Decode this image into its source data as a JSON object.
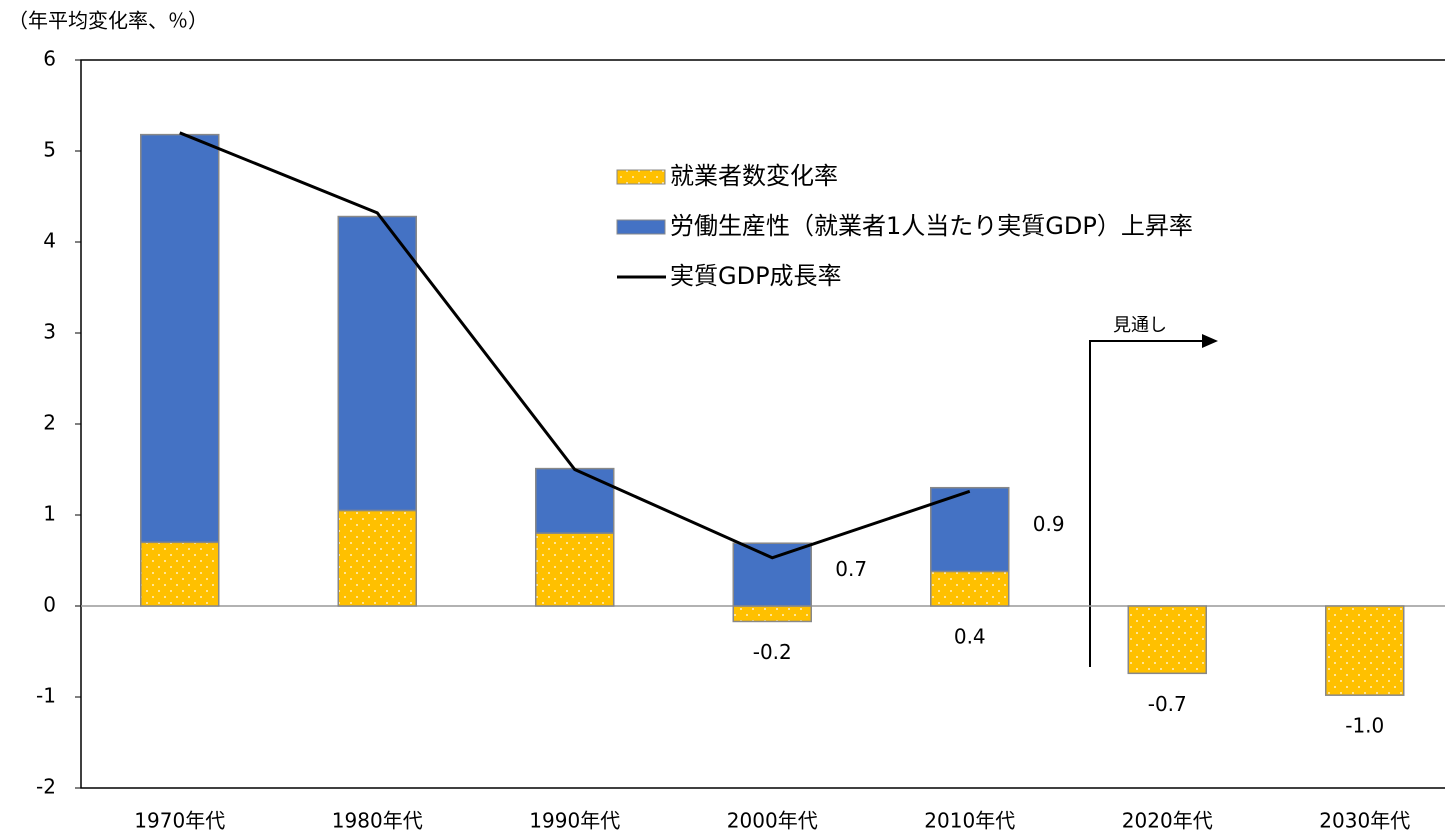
{
  "chart_data": {
    "type": "bar",
    "stacked": true,
    "ylabel": "（年平均変化率、％）",
    "categories": [
      "1970年代",
      "1980年代",
      "1990年代",
      "2000年代",
      "2010年代",
      "2020年代",
      "2030年代"
    ],
    "series": [
      {
        "name": "就業者数変化率",
        "color": "#ffc000",
        "values": [
          0.7,
          1.05,
          0.8,
          -0.17,
          0.38,
          -0.74,
          -0.98
        ],
        "value_labels": [
          null,
          null,
          null,
          "-0.2",
          "0.4",
          "-0.7",
          "-1.0"
        ]
      },
      {
        "name": "労働生産性（就業者1人当たり実質GDP）上昇率",
        "color": "#4472c4",
        "values": [
          4.48,
          3.23,
          0.71,
          0.69,
          0.92,
          null,
          null
        ],
        "value_labels": [
          null,
          null,
          null,
          "0.7",
          "0.9",
          null,
          null
        ]
      },
      {
        "name": "実質GDP成長率",
        "color": "#000000",
        "type": "line",
        "values": [
          5.2,
          4.32,
          1.5,
          0.53,
          1.26,
          null,
          null
        ]
      }
    ],
    "annotation": "見通し",
    "ylim": [
      -2,
      6
    ],
    "yticks": [
      -2,
      -1,
      0,
      1,
      2,
      3,
      4,
      5,
      6
    ],
    "grid": false
  }
}
